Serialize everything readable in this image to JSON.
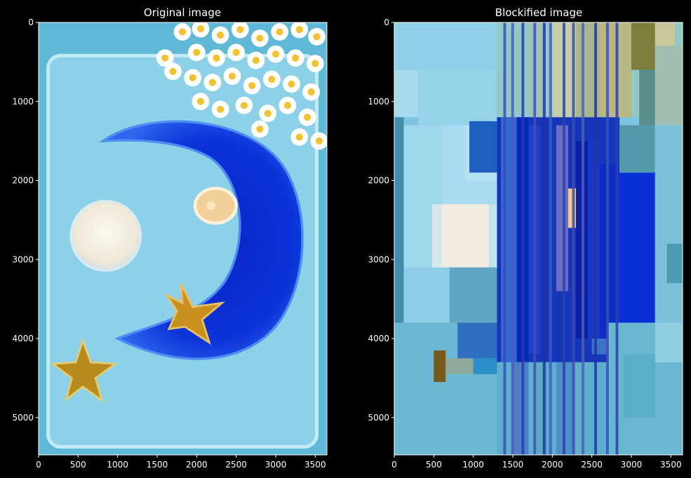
{
  "chart_data": [
    {
      "type": "image",
      "title": "Original image",
      "xlim": [
        0,
        3648
      ],
      "ylim": [
        5472,
        0
      ],
      "xticks": [
        0,
        500,
        1000,
        1500,
        2000,
        2500,
        3000,
        3500
      ],
      "yticks": [
        0,
        1000,
        2000,
        3000,
        4000,
        5000
      ],
      "content": {
        "background_color": "#5fb8d6",
        "tray_color": "#8fd3ea",
        "moon_color": "#0a2fd0",
        "candle_color": "#f4efe4",
        "tealight_color": "#f3cf9a",
        "star_color": "#c9901e",
        "flower_color": "#ffffff",
        "flower_center_color": "#f2c230"
      }
    },
    {
      "type": "image",
      "title": "Blockified image",
      "xlim": [
        0,
        3648
      ],
      "ylim": [
        5472,
        0
      ],
      "xticks": [
        0,
        500,
        1000,
        1500,
        2000,
        2500,
        3000,
        3500
      ],
      "yticks": [
        0,
        1000,
        2000,
        3000,
        4000,
        5000
      ],
      "blocks": [
        {
          "x0": 0,
          "y0": 0,
          "x1": 3648,
          "y1": 5472,
          "c": "#7cc3dd"
        },
        {
          "x0": 0,
          "y0": 0,
          "x1": 1300,
          "y1": 600,
          "c": "#8fd0e8"
        },
        {
          "x0": 0,
          "y0": 600,
          "x1": 300,
          "y1": 1200,
          "c": "#a6d9ee"
        },
        {
          "x0": 300,
          "y0": 600,
          "x1": 1300,
          "y1": 1300,
          "c": "#96d2ea"
        },
        {
          "x0": 0,
          "y0": 1200,
          "x1": 120,
          "y1": 3800,
          "c": "#3f8fac"
        },
        {
          "x0": 120,
          "y0": 1300,
          "x1": 600,
          "y1": 3200,
          "c": "#9fd7ec"
        },
        {
          "x0": 600,
          "y0": 1300,
          "x1": 1300,
          "y1": 2300,
          "c": "#a9dcf0"
        },
        {
          "x0": 900,
          "y0": 1300,
          "x1": 1300,
          "y1": 2000,
          "c": "#b5e2f3"
        },
        {
          "x0": 600,
          "y0": 2300,
          "x1": 1200,
          "y1": 3100,
          "c": "#f2ece0"
        },
        {
          "x0": 480,
          "y0": 2300,
          "x1": 600,
          "y1": 3100,
          "c": "#d7e9e6"
        },
        {
          "x0": 1200,
          "y0": 2300,
          "x1": 1350,
          "y1": 3100,
          "c": "#c2e4ee"
        },
        {
          "x0": 120,
          "y0": 3100,
          "x1": 700,
          "y1": 3800,
          "c": "#8fcde6"
        },
        {
          "x0": 700,
          "y0": 3100,
          "x1": 1300,
          "y1": 3800,
          "c": "#5ea6c4"
        },
        {
          "x0": 0,
          "y0": 3800,
          "x1": 1300,
          "y1": 5472,
          "c": "#6ab8d3"
        },
        {
          "x0": 500,
          "y0": 4150,
          "x1": 650,
          "y1": 4550,
          "c": "#7a5a1a"
        },
        {
          "x0": 650,
          "y0": 4250,
          "x1": 1000,
          "y1": 4450,
          "c": "#8ea89a"
        },
        {
          "x0": 800,
          "y0": 3800,
          "x1": 1300,
          "y1": 4250,
          "c": "#2f6fc0"
        },
        {
          "x0": 1000,
          "y0": 4250,
          "x1": 1300,
          "y1": 4450,
          "c": "#2b8ec8"
        },
        {
          "x0": 1300,
          "y0": 0,
          "x1": 3648,
          "y1": 1200,
          "c": "#93c8c5"
        },
        {
          "x0": 1700,
          "y0": 0,
          "x1": 1900,
          "y1": 1200,
          "c": "#9fc3b8"
        },
        {
          "x0": 2000,
          "y0": 0,
          "x1": 2300,
          "y1": 1200,
          "c": "#c5cfa7"
        },
        {
          "x0": 2300,
          "y0": 0,
          "x1": 2600,
          "y1": 1300,
          "c": "#a8b78b"
        },
        {
          "x0": 2600,
          "y0": 0,
          "x1": 3000,
          "y1": 1200,
          "c": "#b9b883"
        },
        {
          "x0": 3000,
          "y0": 0,
          "x1": 3300,
          "y1": 600,
          "c": "#7c7f3c"
        },
        {
          "x0": 3300,
          "y0": 0,
          "x1": 3550,
          "y1": 300,
          "c": "#c8c89a"
        },
        {
          "x0": 3100,
          "y0": 600,
          "x1": 3300,
          "y1": 1300,
          "c": "#5a8c8b"
        },
        {
          "x0": 3300,
          "y0": 300,
          "x1": 3648,
          "y1": 1300,
          "c": "#9fbfb0"
        },
        {
          "x0": 950,
          "y0": 1250,
          "x1": 1300,
          "y1": 1900,
          "c": "#1f5fc2"
        },
        {
          "x0": 1300,
          "y0": 1200,
          "x1": 2850,
          "y1": 4300,
          "c": "#1536b8"
        },
        {
          "x0": 1350,
          "y0": 1200,
          "x1": 1550,
          "y1": 4300,
          "c": "#3568d0"
        },
        {
          "x0": 1550,
          "y0": 1200,
          "x1": 1700,
          "y1": 4300,
          "c": "#0a28b8"
        },
        {
          "x0": 1700,
          "y0": 1300,
          "x1": 1850,
          "y1": 4200,
          "c": "#1f3fc8"
        },
        {
          "x0": 2050,
          "y0": 1300,
          "x1": 2200,
          "y1": 3400,
          "c": "#6a6ec0"
        },
        {
          "x0": 2200,
          "y0": 2100,
          "x1": 2300,
          "y1": 2600,
          "c": "#ecc88e"
        },
        {
          "x0": 2300,
          "y0": 1500,
          "x1": 2450,
          "y1": 4000,
          "c": "#0d1ea8"
        },
        {
          "x0": 2450,
          "y0": 1500,
          "x1": 2600,
          "y1": 4100,
          "c": "#1838c0"
        },
        {
          "x0": 2600,
          "y0": 1800,
          "x1": 2850,
          "y1": 4000,
          "c": "#0a2fc0"
        },
        {
          "x0": 2850,
          "y0": 1900,
          "x1": 3300,
          "y1": 3800,
          "c": "#0b2fd6"
        },
        {
          "x0": 2850,
          "y0": 1300,
          "x1": 3300,
          "y1": 1900,
          "c": "#5598ab"
        },
        {
          "x0": 3300,
          "y0": 1300,
          "x1": 3648,
          "y1": 3800,
          "c": "#7cc0da"
        },
        {
          "x0": 3450,
          "y0": 2800,
          "x1": 3648,
          "y1": 3300,
          "c": "#4f9bb4"
        },
        {
          "x0": 1300,
          "y0": 4300,
          "x1": 2700,
          "y1": 5472,
          "c": "#5faecd"
        },
        {
          "x0": 1500,
          "y0": 4300,
          "x1": 1700,
          "y1": 5472,
          "c": "#4e7fc6"
        },
        {
          "x0": 1800,
          "y0": 4300,
          "x1": 1950,
          "y1": 5472,
          "c": "#5ea9c6"
        },
        {
          "x0": 2050,
          "y0": 4300,
          "x1": 2250,
          "y1": 5472,
          "c": "#4f8fc8"
        },
        {
          "x0": 2700,
          "y0": 3800,
          "x1": 3648,
          "y1": 5472,
          "c": "#6ab8d0"
        },
        {
          "x0": 2900,
          "y0": 4200,
          "x1": 3300,
          "y1": 5000,
          "c": "#5aaec8"
        },
        {
          "x0": 3300,
          "y0": 3800,
          "x1": 3648,
          "y1": 4300,
          "c": "#8fcde0"
        },
        {
          "x0": 2500,
          "y0": 4000,
          "x1": 2700,
          "y1": 4200,
          "c": "#3d72c4"
        }
      ],
      "stripes": [
        {
          "x": 1380,
          "c": "#3a4db8"
        },
        {
          "x": 1480,
          "c": "#4a5cbf"
        },
        {
          "x": 1610,
          "c": "#2a3ab0"
        },
        {
          "x": 1760,
          "c": "#4050b8"
        },
        {
          "x": 1880,
          "c": "#20309e"
        },
        {
          "x": 1960,
          "c": "#3a5ec4"
        },
        {
          "x": 2130,
          "c": "#2b3fb4"
        },
        {
          "x": 2250,
          "c": "#3d4bb0"
        },
        {
          "x": 2370,
          "c": "#5060b8"
        },
        {
          "x": 2530,
          "c": "#2434a8"
        },
        {
          "x": 2680,
          "c": "#3550c0"
        },
        {
          "x": 2800,
          "c": "#2a40b4"
        }
      ]
    }
  ]
}
